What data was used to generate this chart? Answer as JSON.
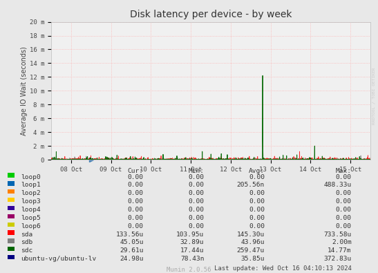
{
  "title": "Disk latency per device - by week",
  "ylabel": "Average IO Wait (seconds)",
  "background_color": "#e8e8e8",
  "plot_bg_color": "#f0f0f0",
  "grid_color": "#ffaaaa",
  "ylim": [
    0,
    0.02
  ],
  "yticks": [
    0.0,
    0.002,
    0.004,
    0.006,
    0.008,
    0.01,
    0.012,
    0.014,
    0.016,
    0.018,
    0.02
  ],
  "ytick_labels": [
    "0",
    "2 m",
    "4 m",
    "6 m",
    "8 m",
    "10 m",
    "12 m",
    "14 m",
    "16 m",
    "18 m",
    "20 m"
  ],
  "xtick_labels": [
    "08 Oct",
    "09 Oct",
    "10 Oct",
    "11 Oct",
    "12 Oct",
    "13 Oct",
    "14 Oct",
    "15 Oct"
  ],
  "watermark": "RRDTOOL / TOBI OETIKER",
  "footer": "Munin 2.0.56",
  "last_update": "Last update: Wed Oct 16 04:10:13 2024",
  "legend": [
    {
      "label": "loop0",
      "color": "#00cc00"
    },
    {
      "label": "loop1",
      "color": "#0066b3"
    },
    {
      "label": "loop2",
      "color": "#ff8000"
    },
    {
      "label": "loop3",
      "color": "#ffcc00"
    },
    {
      "label": "loop4",
      "color": "#330099"
    },
    {
      "label": "loop5",
      "color": "#990066"
    },
    {
      "label": "loop6",
      "color": "#cccc00"
    },
    {
      "label": "sda",
      "color": "#ff0000"
    },
    {
      "label": "sdb",
      "color": "#808080"
    },
    {
      "label": "sdc",
      "color": "#006600"
    },
    {
      "label": "ubuntu-vg/ubuntu-lv",
      "color": "#000080"
    }
  ],
  "table_data": [
    [
      "loop0",
      "0.00",
      "0.00",
      "0.00",
      "0.00"
    ],
    [
      "loop1",
      "0.00",
      "0.00",
      "205.56n",
      "488.33u"
    ],
    [
      "loop2",
      "0.00",
      "0.00",
      "0.00",
      "0.00"
    ],
    [
      "loop3",
      "0.00",
      "0.00",
      "0.00",
      "0.00"
    ],
    [
      "loop4",
      "0.00",
      "0.00",
      "0.00",
      "0.00"
    ],
    [
      "loop5",
      "0.00",
      "0.00",
      "0.00",
      "0.00"
    ],
    [
      "loop6",
      "0.00",
      "0.00",
      "0.00",
      "0.00"
    ],
    [
      "sda",
      "133.56u",
      "103.95u",
      "145.30u",
      "733.58u"
    ],
    [
      "sdb",
      "45.05u",
      "32.89u",
      "43.96u",
      "2.00m"
    ],
    [
      "sdc",
      "29.61u",
      "17.44u",
      "259.47u",
      "14.77m"
    ],
    [
      "ubuntu-vg/ubuntu-lv",
      "24.98u",
      "78.43n",
      "35.85u",
      "372.83u"
    ]
  ]
}
